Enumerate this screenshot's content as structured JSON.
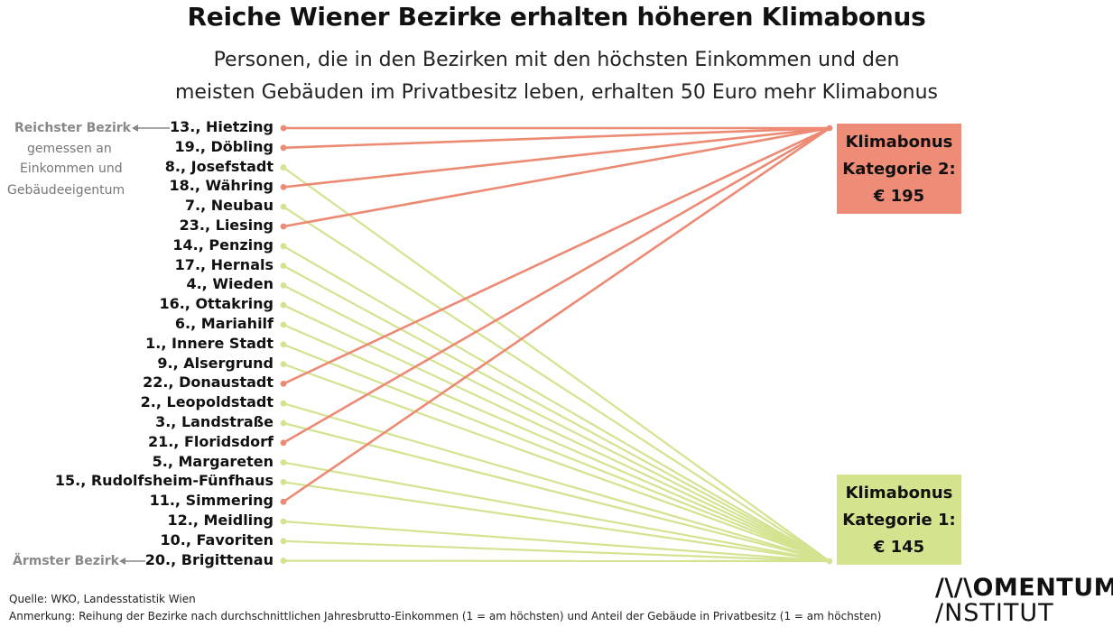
{
  "title": "Reiche Wiener Bezirke erhalten höheren Klimabonus",
  "subtitle_line1": "Personen, die in den Bezirken mit den höchsten Einkommen und den",
  "subtitle_line2": "meisten Gebäuden im Privatbesitz leben, erhalten 50 Euro mehr Klimabonus",
  "annotations": {
    "richest": "Reichster Bezirk",
    "richest_note_1": "gemessen an",
    "richest_note_2": "Einkommen und",
    "richest_note_3": "Gebäudeeigentum",
    "poorest": "Ärmster Bezirk"
  },
  "categories": {
    "cat2": {
      "line1": "Klimabonus",
      "line2": "Kategorie 2:",
      "amount": "€ 195",
      "color": "#ef8c78"
    },
    "cat1": {
      "line1": "Klimabonus",
      "line2": "Kategorie 1:",
      "amount": "€ 145",
      "color": "#d4e38e"
    }
  },
  "colors": {
    "cat2_line": "#ec8a74",
    "cat1_line": "#d3e390"
  },
  "districts": [
    {
      "label": "13., Hietzing",
      "category": 2
    },
    {
      "label": "19., Döbling",
      "category": 2
    },
    {
      "label": "8., Josefstadt",
      "category": 1
    },
    {
      "label": "18., Währing",
      "category": 2
    },
    {
      "label": "7., Neubau",
      "category": 1
    },
    {
      "label": "23., Liesing",
      "category": 2
    },
    {
      "label": "14., Penzing",
      "category": 1
    },
    {
      "label": "17., Hernals",
      "category": 1
    },
    {
      "label": "4., Wieden",
      "category": 1
    },
    {
      "label": "16., Ottakring",
      "category": 1
    },
    {
      "label": "6., Mariahilf",
      "category": 1
    },
    {
      "label": "1., Innere Stadt",
      "category": 1
    },
    {
      "label": "9., Alsergrund",
      "category": 1
    },
    {
      "label": "22., Donaustadt",
      "category": 2
    },
    {
      "label": "2., Leopoldstadt",
      "category": 1
    },
    {
      "label": "3., Landstraße",
      "category": 1
    },
    {
      "label": "21., Floridsdorf",
      "category": 2
    },
    {
      "label": "5., Margareten",
      "category": 1
    },
    {
      "label": "15., Rudolfsheim-Fünfhaus",
      "category": 1
    },
    {
      "label": "11., Simmering",
      "category": 2
    },
    {
      "label": "12., Meidling",
      "category": 1
    },
    {
      "label": "10., Favoriten",
      "category": 1
    },
    {
      "label": "20., Brigittenau",
      "category": 1
    }
  ],
  "footer": {
    "source": "Quelle: WKO, Landesstatistik Wien",
    "note": "Anmerkung: Reihung der Bezirke nach durchschnittlichen Jahresbrutto-Einkommen (1 = am höchsten) und Anteil der Gebäude in Privatbesitz (1 = am höchsten)"
  },
  "logo": {
    "line1": "/\\/\\OMENTUM",
    "line2": "/NSTITUT"
  }
}
